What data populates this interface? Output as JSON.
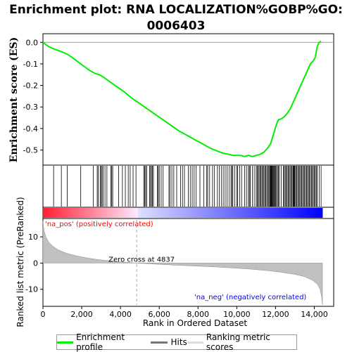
{
  "title": "Enrichment plot: RNA LOCALIZATION%GOBP%GO:\n0006403",
  "legend": {
    "items": [
      {
        "label": "Enrichment profile",
        "color": "#00ee00"
      },
      {
        "label": "Hits",
        "color": "#777777"
      },
      {
        "label": "Ranking metric scores",
        "color": "#cccccc"
      }
    ]
  },
  "chart_data": [
    {
      "type": "line",
      "name": "enrichment-profile",
      "ylabel": "Enrichment score (ES)",
      "xlim": [
        0,
        15000
      ],
      "ylim": [
        -0.57,
        0.04
      ],
      "yticks": [
        0.0,
        -0.1,
        -0.2,
        -0.3,
        -0.4,
        -0.5
      ],
      "ytick_labels": [
        "0.0",
        "-0.1",
        "-0.2",
        "-0.3",
        "-0.4",
        "-0.5"
      ],
      "color": "#00ee00",
      "x": [
        0,
        300,
        550,
        700,
        850,
        1000,
        1250,
        1500,
        1800,
        2100,
        2400,
        2700,
        2900,
        3100,
        3400,
        3800,
        4200,
        4600,
        5000,
        5400,
        5800,
        6200,
        6600,
        7000,
        7400,
        7800,
        8200,
        8600,
        9000,
        9300,
        9600,
        9800,
        10000,
        10200,
        10400,
        10600,
        10800,
        11000,
        11200,
        11400,
        11600,
        11750,
        11850,
        11950,
        12050,
        12150,
        12300,
        12450,
        12600,
        12750,
        12900,
        13050,
        13200,
        13350,
        13500,
        13650,
        13800,
        13950,
        14050,
        14150,
        14250,
        14350
      ],
      "y": [
        0.0,
        -0.02,
        -0.03,
        -0.035,
        -0.04,
        -0.045,
        -0.055,
        -0.07,
        -0.09,
        -0.11,
        -0.13,
        -0.145,
        -0.15,
        -0.16,
        -0.18,
        -0.205,
        -0.23,
        -0.26,
        -0.285,
        -0.31,
        -0.335,
        -0.36,
        -0.385,
        -0.41,
        -0.43,
        -0.45,
        -0.47,
        -0.49,
        -0.505,
        -0.515,
        -0.52,
        -0.525,
        -0.525,
        -0.525,
        -0.53,
        -0.525,
        -0.53,
        -0.525,
        -0.52,
        -0.51,
        -0.49,
        -0.47,
        -0.44,
        -0.41,
        -0.38,
        -0.36,
        -0.355,
        -0.345,
        -0.33,
        -0.31,
        -0.28,
        -0.25,
        -0.22,
        -0.19,
        -0.16,
        -0.13,
        -0.1,
        -0.085,
        -0.07,
        -0.02,
        0.0,
        0.005
      ]
    },
    {
      "type": "scatter",
      "name": "hits",
      "xlim": [
        0,
        15000
      ],
      "hit_ranks": [
        550,
        950,
        1250,
        1950,
        2600,
        2800,
        2850,
        2950,
        3000,
        3050,
        3100,
        3200,
        3300,
        3500,
        3550,
        3600,
        3900,
        4100,
        4250,
        4400,
        4500,
        4650,
        4800,
        5200,
        5250,
        5300,
        5350,
        5500,
        5550,
        5600,
        5650,
        5700,
        5900,
        5950,
        6000,
        6100,
        6200,
        6500,
        6550,
        6650,
        6750,
        6900,
        7100,
        7200,
        7300,
        7500,
        7600,
        7700,
        7800,
        7900,
        8100,
        8300,
        8450,
        8500,
        8600,
        8750,
        8850,
        9000,
        9100,
        9200,
        9300,
        9400,
        9500,
        9600,
        9700,
        9750,
        9800,
        9900,
        10000,
        10050,
        10150,
        10250,
        10400,
        10500,
        10600,
        10650,
        10700,
        10800,
        10900,
        11000,
        11050,
        11100,
        11150,
        11200,
        11250,
        11300,
        11350,
        11400,
        11450,
        11500,
        11550,
        11600,
        11650,
        11700,
        11720,
        11750,
        11780,
        11800,
        11830,
        11860,
        11900,
        11930,
        11960,
        12000,
        12050,
        12100,
        12150,
        12200,
        12300,
        12400,
        12450,
        12500,
        12550,
        12600,
        12650,
        12700,
        12750,
        12800,
        12850,
        12900,
        12920,
        12950,
        12980,
        13000,
        13050,
        13100,
        13150,
        13200,
        13250,
        13300,
        13350,
        13400,
        13450,
        13500,
        13550,
        13600,
        13650,
        13700,
        13750,
        13800,
        13850,
        13900,
        13950,
        14000,
        14050,
        14100,
        14150,
        14250,
        14350
      ]
    },
    {
      "type": "area",
      "name": "ranked-list-metric",
      "ylabel": "Ranked list metric (PreRanked)",
      "xlabel": "Rank in Ordered Dataset",
      "xlim": [
        0,
        15000
      ],
      "ylim": [
        -16.5,
        17
      ],
      "yticks": [
        10,
        0,
        -10
      ],
      "ytick_labels": [
        "10",
        "0",
        "-10"
      ],
      "xticks": [
        0,
        2000,
        4000,
        6000,
        8000,
        10000,
        12000,
        14000
      ],
      "xtick_labels": [
        "0",
        "2,000",
        "4,000",
        "6,000",
        "8,000",
        "10,000",
        "12,000",
        "14,000"
      ],
      "x": [
        0,
        50,
        150,
        300,
        500,
        800,
        1200,
        1700,
        2300,
        3000,
        3800,
        4837,
        6000,
        7500,
        9000,
        10500,
        11500,
        12300,
        13000,
        13500,
        13900,
        14150,
        14300,
        14380,
        14420
      ],
      "y": [
        16,
        12.5,
        10,
        8,
        6.5,
        5,
        3.8,
        2.8,
        1.9,
        1.2,
        0.6,
        0.0,
        -0.5,
        -1.0,
        -1.5,
        -2.2,
        -2.8,
        -3.5,
        -4.3,
        -5.2,
        -6.5,
        -8.0,
        -10.0,
        -13.0,
        -16.0
      ],
      "zero_cross_rank": 4837,
      "annotations": [
        {
          "text": "Zero cross at 4837",
          "color": "#000000"
        },
        {
          "text": "'na_pos' (positively correlated)",
          "color": "#ff0000"
        },
        {
          "text": "'na_neg' (negatively correlated)",
          "color": "#0000ff"
        }
      ]
    }
  ]
}
